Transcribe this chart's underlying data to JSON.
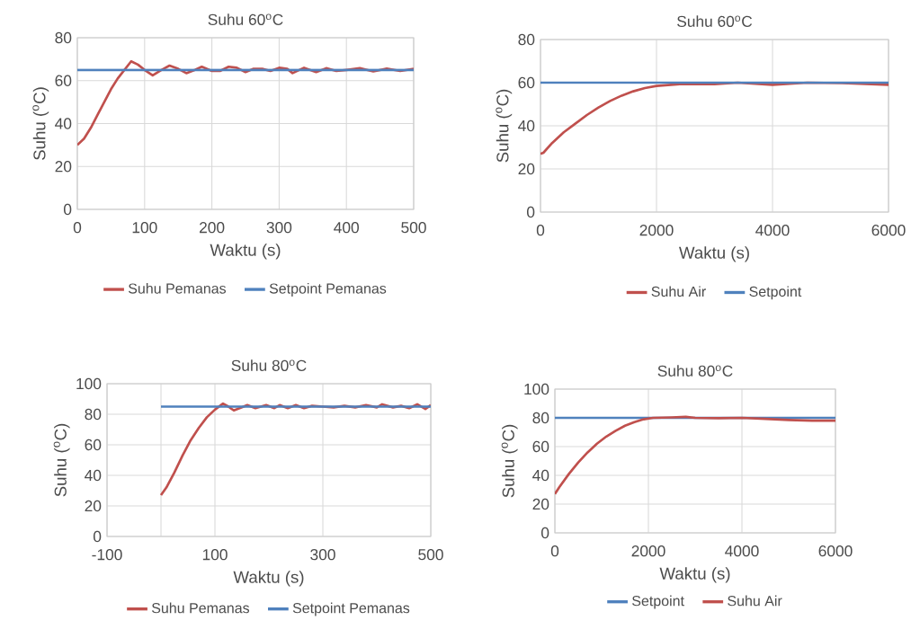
{
  "chart_data": [
    {
      "type": "line",
      "title": "Suhu 60$^{o}$C",
      "xlabel": "Waktu (s)",
      "ylabel": "Suhu ($^{o}$C)",
      "xlim": [
        0,
        500
      ],
      "xticks": [
        0,
        100,
        200,
        300,
        400,
        500
      ],
      "ylim": [
        0,
        80
      ],
      "yticks": [
        0,
        20,
        40,
        60,
        80
      ],
      "grid": true,
      "legend": "bottom",
      "marker": "none",
      "line_style": "solid",
      "series": [
        {
          "name": "Suhu Pemanas",
          "color": "#c0504d",
          "x": [
            0,
            10,
            20,
            30,
            40,
            50,
            60,
            70,
            80,
            90,
            100,
            112,
            125,
            137,
            150,
            162,
            175,
            185,
            200,
            212,
            225,
            237,
            250,
            262,
            275,
            287,
            300,
            312,
            320,
            337,
            355,
            370,
            385,
            400,
            420,
            440,
            460,
            480,
            500
          ],
          "values": [
            30,
            33,
            38,
            44,
            50,
            56,
            61,
            65,
            69,
            67.5,
            65,
            62.5,
            65,
            67,
            65.5,
            63.5,
            65,
            66.5,
            64.5,
            64.5,
            66.5,
            66,
            64,
            65.5,
            65.5,
            64.5,
            66,
            65.5,
            63.5,
            66,
            64,
            65.8,
            64.5,
            65,
            65.8,
            64.3,
            65.6,
            64.5,
            65.5
          ]
        },
        {
          "name": "Setpoint Pemanas",
          "color": "#4f81bd",
          "x": [
            0,
            500
          ],
          "values": [
            65,
            65
          ]
        }
      ]
    },
    {
      "type": "line",
      "title": "Suhu 60$^{o}$C",
      "xlabel": "Waktu (s)",
      "ylabel": "Suhu ($^{o}$C)",
      "xlim": [
        0,
        6000
      ],
      "xticks": [
        0,
        2000,
        4000,
        6000
      ],
      "ylim": [
        0,
        80
      ],
      "yticks": [
        0,
        20,
        40,
        60,
        80
      ],
      "grid": true,
      "legend": "bottom",
      "marker": "none",
      "line_style": "solid",
      "series": [
        {
          "name": "Suhu Air",
          "color": "#c0504d",
          "x": [
            0,
            50,
            200,
            400,
            600,
            800,
            1000,
            1200,
            1400,
            1600,
            1800,
            2000,
            2400,
            3000,
            3400,
            4000,
            4600,
            5200,
            6000
          ],
          "values": [
            27,
            27.5,
            32,
            37,
            41,
            45,
            48.5,
            51.5,
            54,
            56,
            57.5,
            58.5,
            59.3,
            59.3,
            60,
            59,
            60,
            59.8,
            59
          ]
        },
        {
          "name": "Setpoint",
          "color": "#4f81bd",
          "x": [
            0,
            6000
          ],
          "values": [
            60,
            60
          ]
        }
      ]
    },
    {
      "type": "line",
      "title": "Suhu 80$^{o}$C",
      "xlabel": "Waktu (s)",
      "ylabel": "Suhu ($^{o}$C)",
      "xlim": [
        -100,
        500
      ],
      "xticks": [
        -100,
        {
          "value": 0,
          "label": null
        },
        100,
        300,
        500
      ],
      "ylim": [
        0,
        100
      ],
      "yticks": [
        0,
        20,
        40,
        60,
        80,
        100
      ],
      "grid": true,
      "legend": "bottom",
      "marker": "none",
      "line_style": "solid",
      "series": [
        {
          "name": "Suhu Pemanas",
          "color": "#c0504d",
          "x": [
            0,
            10,
            25,
            40,
            55,
            70,
            85,
            100,
            115,
            125,
            135,
            150,
            160,
            175,
            195,
            210,
            220,
            235,
            250,
            265,
            280,
            300,
            320,
            340,
            360,
            380,
            400,
            410,
            430,
            445,
            460,
            475,
            490,
            500
          ],
          "values": [
            27,
            32,
            42,
            53,
            63,
            71,
            78,
            83,
            87,
            85,
            82.5,
            84.5,
            86,
            84,
            86,
            84,
            86,
            84,
            86,
            84,
            85.5,
            85,
            84.5,
            85.5,
            84.5,
            86,
            84.5,
            86.5,
            84.5,
            85.5,
            84,
            86.5,
            83.5,
            86
          ]
        },
        {
          "name": "Setpoint Pemanas",
          "color": "#4f81bd",
          "x": [
            0,
            500
          ],
          "values": [
            85,
            85
          ]
        }
      ]
    },
    {
      "type": "line",
      "title": "Suhu 80$^{o}$C",
      "xlabel": "Waktu (s)",
      "ylabel": "Suhu ($^{o}$C)",
      "xlim": [
        0,
        6000
      ],
      "xticks": [
        0,
        2000,
        4000,
        6000
      ],
      "ylim": [
        0,
        100
      ],
      "yticks": [
        0,
        20,
        40,
        60,
        80,
        100
      ],
      "grid": true,
      "legend": "bottom",
      "marker": "none",
      "line_style": "solid",
      "series": [
        {
          "name": "Setpoint",
          "color": "#4f81bd",
          "x": [
            0,
            6000
          ],
          "values": [
            80,
            80
          ]
        },
        {
          "name": "Suhu Air",
          "color": "#c0504d",
          "x": [
            0,
            100,
            300,
            500,
            700,
            900,
            1100,
            1300,
            1500,
            1700,
            1900,
            2100,
            2500,
            2800,
            3000,
            3500,
            4000,
            4500,
            5000,
            5500,
            6000
          ],
          "values": [
            27,
            32,
            41,
            49,
            56,
            62,
            67,
            71,
            74.5,
            77,
            79,
            80,
            80.3,
            80.7,
            80,
            79.8,
            80,
            79.3,
            78.5,
            78,
            78
          ]
        }
      ]
    }
  ]
}
